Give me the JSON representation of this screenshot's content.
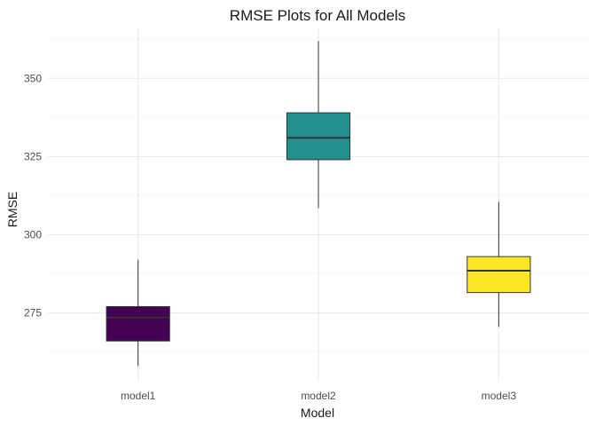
{
  "chart_data": {
    "type": "boxplot",
    "title": "RMSE Plots for All Models",
    "xlabel": "Model",
    "ylabel": "RMSE",
    "categories": [
      "model1",
      "model2",
      "model3"
    ],
    "ylim": [
      253,
      366
    ],
    "yticks": [
      275,
      300,
      325,
      350
    ],
    "grid": true,
    "legend": "none",
    "boxes": [
      {
        "category": "model1",
        "min": 258,
        "q1": 266,
        "median": 273.5,
        "q3": 277,
        "max": 292,
        "color": "#440154"
      },
      {
        "category": "model2",
        "min": 308.5,
        "q1": 324,
        "median": 331,
        "q3": 339,
        "max": 362,
        "color": "#21908C"
      },
      {
        "category": "model3",
        "min": 270.5,
        "q1": 281.5,
        "median": 288.5,
        "q3": 293,
        "max": 310.5,
        "color": "#FDE725"
      }
    ]
  }
}
